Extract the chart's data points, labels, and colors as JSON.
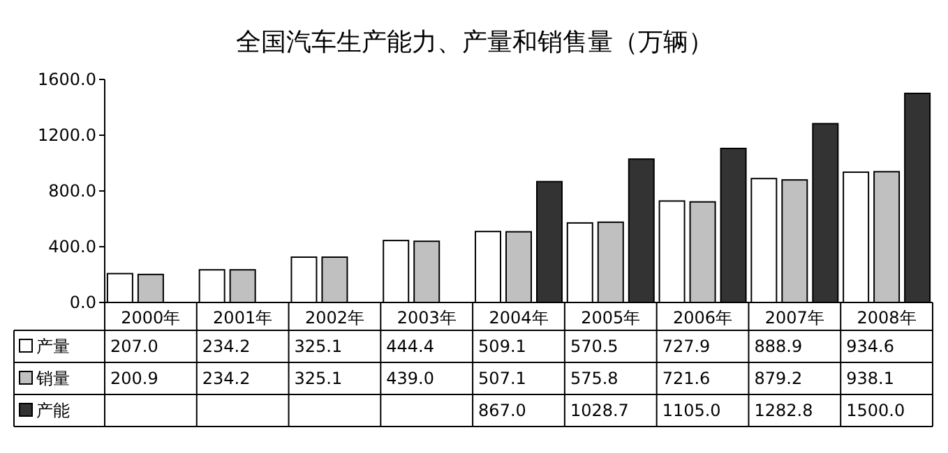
{
  "chart_data": {
    "type": "bar",
    "title": "全国汽车生产能力、产量和销售量（万辆）",
    "categories": [
      "2000年",
      "2001年",
      "2002年",
      "2003年",
      "2004年",
      "2005年",
      "2006年",
      "2007年",
      "2008年"
    ],
    "series": [
      {
        "name": "产量",
        "color": "#ffffff",
        "values": [
          207.0,
          234.2,
          325.1,
          444.4,
          509.1,
          570.5,
          727.9,
          888.9,
          934.6
        ],
        "value_labels": [
          "207.0",
          "234.2",
          "325.1",
          "444.4",
          "509.1",
          "570.5",
          "727.9",
          "888.9",
          "934.6"
        ]
      },
      {
        "name": "销量",
        "color": "#c0c0c0",
        "values": [
          200.9,
          234.2,
          325.1,
          439.0,
          507.1,
          575.8,
          721.6,
          879.2,
          938.1
        ],
        "value_labels": [
          "200.9",
          "234.2",
          "325.1",
          "439.0",
          "507.1",
          "575.8",
          "721.6",
          "879.2",
          "938.1"
        ]
      },
      {
        "name": "产能",
        "color": "#333333",
        "values": [
          null,
          null,
          null,
          null,
          867.0,
          1028.7,
          1105.0,
          1282.8,
          1500.0
        ],
        "value_labels": [
          null,
          null,
          null,
          null,
          "867.0",
          "1028.7",
          "1105.0",
          "1282.8",
          "1500.0"
        ]
      }
    ],
    "ylim": [
      0,
      1600
    ],
    "yticks": [
      {
        "value": 0,
        "label": "0.0"
      },
      {
        "value": 400,
        "label": "400.0"
      },
      {
        "value": 800,
        "label": "800.0"
      },
      {
        "value": 1200,
        "label": "1200.0"
      },
      {
        "value": 1600,
        "label": "1600.0"
      }
    ],
    "legend": "bottom left"
  }
}
